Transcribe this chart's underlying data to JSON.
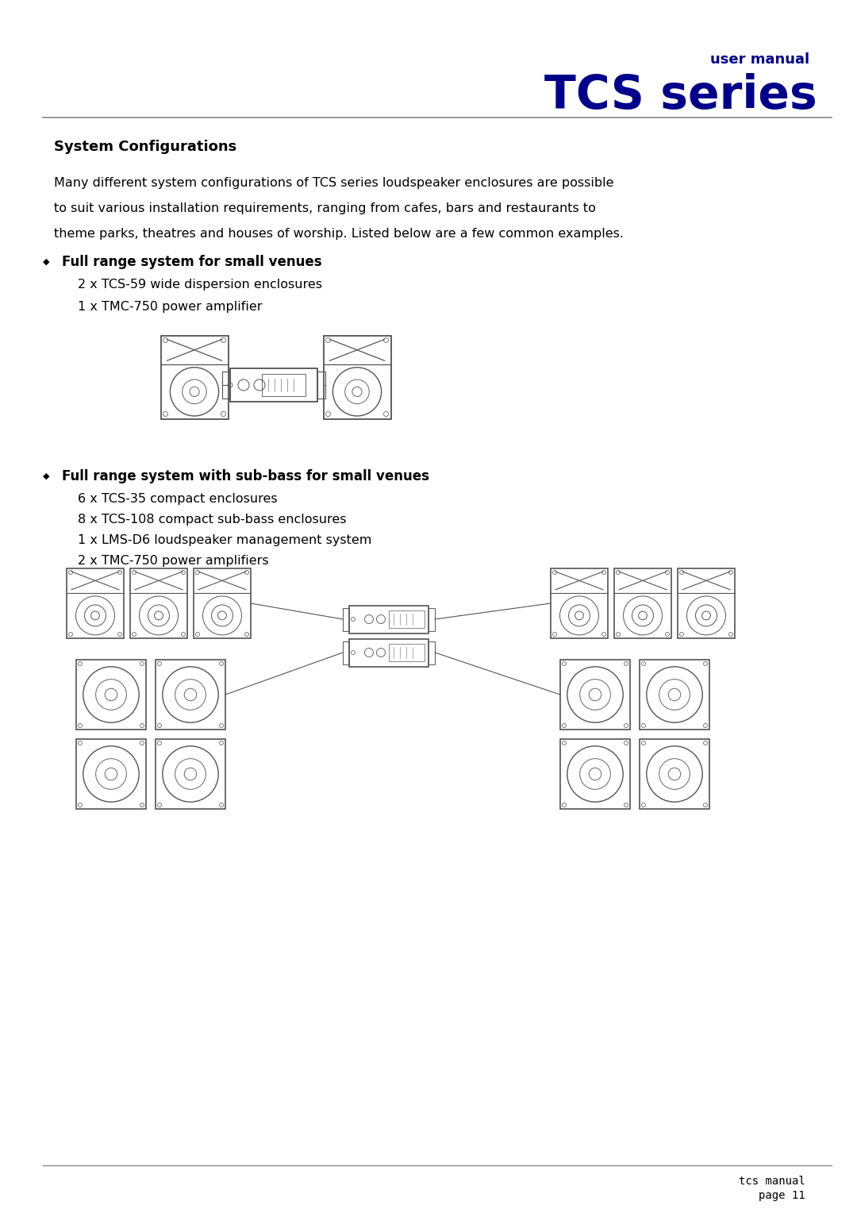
{
  "bg_color": "#ffffff",
  "header_color": "#00008B",
  "text_color": "#000000",
  "line_color": "#555555",
  "title_small": "user manual",
  "title_large": "TCS series",
  "section_title": "System Configurations",
  "body_text": "Many different system configurations of TCS series loudspeaker enclosures are possible\nto suit various installation requirements, ranging from cafes, bars and restaurants to\ntheme parks, theatres and houses of worship. Listed below are a few common examples.",
  "bullet1_main": "Full range system for small venues",
  "bullet1_sub1": "2 x TCS-59 wide dispersion enclosures",
  "bullet1_sub2": "1 x TMC-750 power amplifier",
  "bullet2_main": "Full range system with sub-bass for small venues",
  "bullet2_sub1": "6 x TCS-35 compact enclosures",
  "bullet2_sub2": "8 x TCS-108 compact sub-bass enclosures",
  "bullet2_sub3": "1 x LMS-D6 loudspeaker management system",
  "bullet2_sub4": "2 x TMC-750 power amplifiers",
  "footer_line1": "tcs manual",
  "footer_line2": "page 11"
}
